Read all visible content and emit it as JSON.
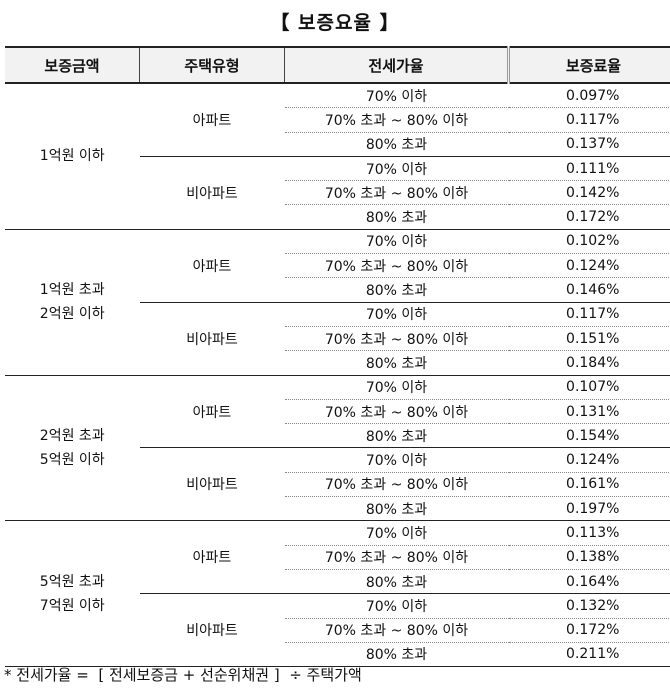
{
  "title": "【 보증요율 】",
  "headers": [
    "보증금액",
    "주택유형",
    "전세가율",
    "보증료율"
  ],
  "ratio_labels": [
    "70% 이하",
    "70% 초과 ~ 80% 이하",
    "80% 초과"
  ],
  "groups": [
    {
      "amount": [
        "1억원 이하"
      ],
      "types": [
        {
          "name": "아파트",
          "rates": [
            "0.097%",
            "0.117%",
            "0.137%"
          ]
        },
        {
          "name": "비아파트",
          "rates": [
            "0.111%",
            "0.142%",
            "0.172%"
          ]
        }
      ]
    },
    {
      "amount": [
        "1억원 초과",
        "2억원 이하"
      ],
      "types": [
        {
          "name": "아파트",
          "rates": [
            "0.102%",
            "0.124%",
            "0.146%"
          ]
        },
        {
          "name": "비아파트",
          "rates": [
            "0.117%",
            "0.151%",
            "0.184%"
          ]
        }
      ]
    },
    {
      "amount": [
        "2억원 초과",
        "5억원 이하"
      ],
      "types": [
        {
          "name": "아파트",
          "rates": [
            "0.107%",
            "0.131%",
            "0.154%"
          ]
        },
        {
          "name": "비아파트",
          "rates": [
            "0.124%",
            "0.161%",
            "0.197%"
          ]
        }
      ]
    },
    {
      "amount": [
        "5억원 초과",
        "7억원 이하"
      ],
      "types": [
        {
          "name": "아파트",
          "rates": [
            "0.113%",
            "0.138%",
            "0.164%"
          ]
        },
        {
          "name": "비아파트",
          "rates": [
            "0.132%",
            "0.172%",
            "0.211%"
          ]
        }
      ]
    }
  ],
  "footnote": "* 전세가율 =  [ 전세보증금 + 선순위채권 ]  ÷ 주택가액"
}
